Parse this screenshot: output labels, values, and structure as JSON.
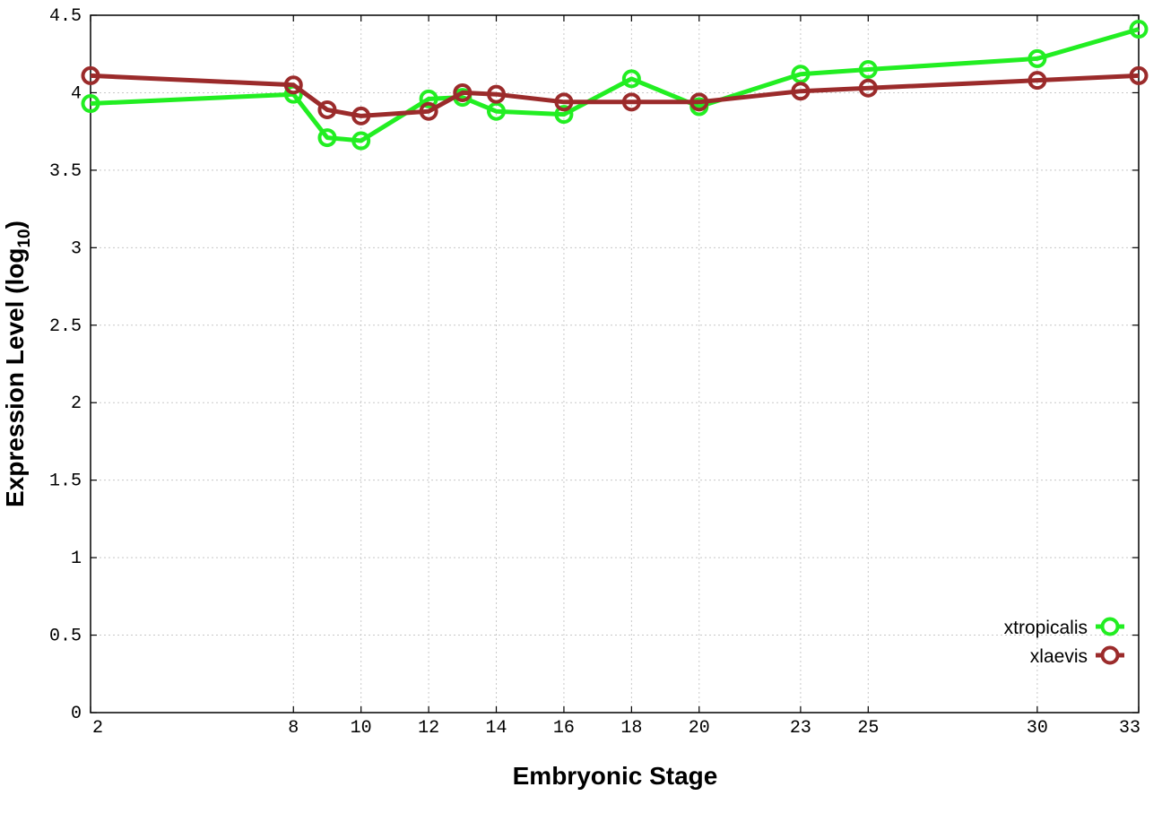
{
  "chart_data": {
    "type": "line",
    "xlabel": "Embryonic Stage",
    "ylabel": "Expression Level (log",
    "ylabel_sub": "10",
    "ylabel_close": ")",
    "xlim": [
      2,
      33
    ],
    "ylim": [
      0,
      4.5
    ],
    "grid": true,
    "legend_position": "bottom-right",
    "x_ticks": [
      {
        "value": 2,
        "label": "2"
      },
      {
        "value": 8,
        "label": "8"
      },
      {
        "value": 10,
        "label": "10"
      },
      {
        "value": 12,
        "label": "12"
      },
      {
        "value": 14,
        "label": "14"
      },
      {
        "value": 16,
        "label": "16"
      },
      {
        "value": 18,
        "label": "18"
      },
      {
        "value": 20,
        "label": "20"
      },
      {
        "value": 23,
        "label": "23"
      },
      {
        "value": 25,
        "label": "25"
      },
      {
        "value": 30,
        "label": "30"
      },
      {
        "value": 33,
        "label": "33"
      }
    ],
    "y_ticks": [
      {
        "value": 0,
        "label": "0"
      },
      {
        "value": 0.5,
        "label": "0.5"
      },
      {
        "value": 1,
        "label": "1"
      },
      {
        "value": 1.5,
        "label": "1.5"
      },
      {
        "value": 2,
        "label": "2"
      },
      {
        "value": 2.5,
        "label": "2.5"
      },
      {
        "value": 3,
        "label": "3"
      },
      {
        "value": 3.5,
        "label": "3.5"
      },
      {
        "value": 4,
        "label": "4"
      },
      {
        "value": 4.5,
        "label": "4.5"
      }
    ],
    "series": [
      {
        "name": "xtropicalis",
        "color": "#22ee22",
        "points": [
          {
            "x": 2,
            "y": 3.93
          },
          {
            "x": 8,
            "y": 3.99
          },
          {
            "x": 9,
            "y": 3.71
          },
          {
            "x": 10,
            "y": 3.69
          },
          {
            "x": 12,
            "y": 3.96
          },
          {
            "x": 13,
            "y": 3.97
          },
          {
            "x": 14,
            "y": 3.88
          },
          {
            "x": 16,
            "y": 3.86
          },
          {
            "x": 18,
            "y": 4.09
          },
          {
            "x": 20,
            "y": 3.91
          },
          {
            "x": 23,
            "y": 4.12
          },
          {
            "x": 25,
            "y": 4.15
          },
          {
            "x": 30,
            "y": 4.22
          },
          {
            "x": 33,
            "y": 4.41
          }
        ]
      },
      {
        "name": "xlaevis",
        "color": "#9b2b2b",
        "points": [
          {
            "x": 2,
            "y": 4.11
          },
          {
            "x": 8,
            "y": 4.05
          },
          {
            "x": 9,
            "y": 3.89
          },
          {
            "x": 10,
            "y": 3.85
          },
          {
            "x": 12,
            "y": 3.88
          },
          {
            "x": 13,
            "y": 4.0
          },
          {
            "x": 14,
            "y": 3.99
          },
          {
            "x": 16,
            "y": 3.94
          },
          {
            "x": 18,
            "y": 3.94
          },
          {
            "x": 20,
            "y": 3.94
          },
          {
            "x": 23,
            "y": 4.01
          },
          {
            "x": 25,
            "y": 4.03
          },
          {
            "x": 30,
            "y": 4.08
          },
          {
            "x": 33,
            "y": 4.11
          }
        ]
      }
    ]
  }
}
